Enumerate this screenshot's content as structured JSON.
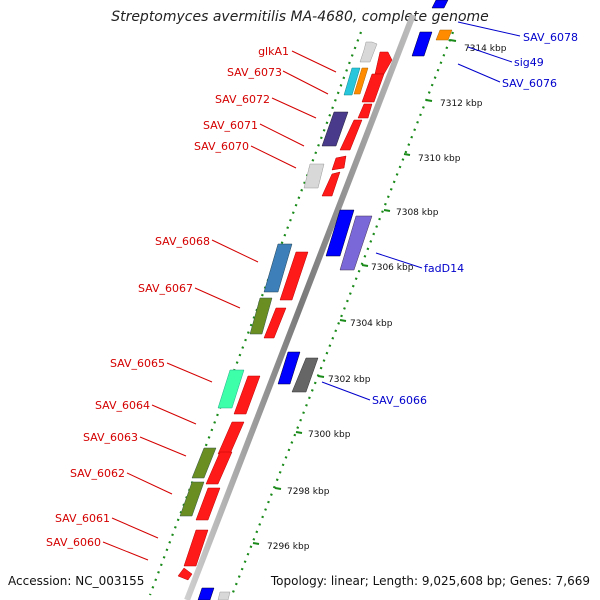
{
  "title": "Streptomyces avermitilis MA-4680, complete genome",
  "footer": {
    "accession": "Accession: NC_003155",
    "topology": "Topology: linear; Length: 9,025,608 bp; Genes: 7,669"
  },
  "colors": {
    "reverse_label": "#d40000",
    "forward_label": "#0000cc",
    "backbone": "#8c8c8c",
    "tick_dots": "#1a8a1a"
  },
  "kbp_ticks": [
    "7314 kbp",
    "7312 kbp",
    "7310 kbp",
    "7308 kbp",
    "7306 kbp",
    "7304 kbp",
    "7302 kbp",
    "7300 kbp",
    "7298 kbp",
    "7296 kbp"
  ],
  "genes": [
    {
      "label": "glkA1",
      "strand": "reverse",
      "color": "#d8d8d8"
    },
    {
      "label": "SAV_6073",
      "strand": "reverse",
      "color": "#27c6dd"
    },
    {
      "label": "SAV_6072",
      "strand": "reverse",
      "color": "#ff0000"
    },
    {
      "label": "SAV_6071",
      "strand": "reverse",
      "color": "#4a3a8c"
    },
    {
      "label": "SAV_6070",
      "strand": "reverse",
      "color": "#d8d8d8"
    },
    {
      "label": "SAV_6068",
      "strand": "reverse",
      "color": "#3d7fb8"
    },
    {
      "label": "SAV_6067",
      "strand": "reverse",
      "color": "#6b8e23"
    },
    {
      "label": "SAV_6065",
      "strand": "reverse",
      "color": "#3dffaa"
    },
    {
      "label": "SAV_6064",
      "strand": "reverse",
      "color": "#ff0000"
    },
    {
      "label": "SAV_6063",
      "strand": "reverse",
      "color": "#6b8e23"
    },
    {
      "label": "SAV_6062",
      "strand": "reverse",
      "color": "#6b8e23"
    },
    {
      "label": "SAV_6061",
      "strand": "reverse",
      "color": "#ff0000"
    },
    {
      "label": "SAV_6060",
      "strand": "reverse",
      "color": "#ff0000"
    },
    {
      "label": "SAV_6078",
      "strand": "forward",
      "color": "#0000ff"
    },
    {
      "label": "sig49",
      "strand": "forward",
      "color": "#ff8c00"
    },
    {
      "label": "SAV_6076",
      "strand": "forward",
      "color": "#0000ff"
    },
    {
      "label": "fadD14",
      "strand": "forward",
      "color": "#7b68d8"
    },
    {
      "label": "SAV_6066",
      "strand": "forward",
      "color": "#666666"
    }
  ]
}
